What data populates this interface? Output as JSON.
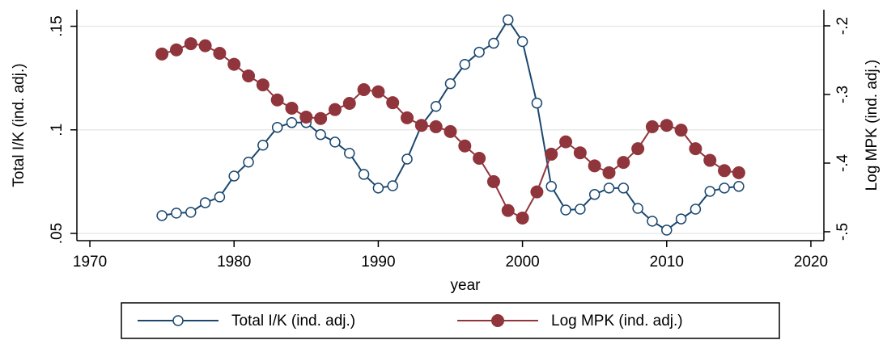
{
  "chart_data": {
    "type": "line",
    "x": [
      1975,
      1976,
      1977,
      1978,
      1979,
      1980,
      1981,
      1982,
      1983,
      1984,
      1985,
      1986,
      1987,
      1988,
      1989,
      1990,
      1991,
      1992,
      1993,
      1994,
      1995,
      1996,
      1997,
      1998,
      1999,
      2000,
      2001,
      2002,
      2003,
      2004,
      2005,
      2006,
      2007,
      2008,
      2009,
      2010,
      2011,
      2012,
      2013,
      2014,
      2015
    ],
    "xlabel": "year",
    "ylabel": "Total I/K (ind. adj.)",
    "y2label": "Log MPK (ind. adj.)",
    "xlim": [
      1969.1,
      2020.9
    ],
    "xticks": [
      1970,
      1980,
      1990,
      2000,
      2010,
      2020
    ],
    "ylim": [
      0.0465,
      0.158
    ],
    "yticks": [
      {
        "value": 0.05,
        "label": ".05"
      },
      {
        "value": 0.1,
        "label": ".1"
      },
      {
        "value": 0.15,
        "label": ".15"
      }
    ],
    "y2lim": [
      -0.513,
      -0.1765
    ],
    "y2ticks": [
      {
        "value": -0.5,
        "label": "-.5"
      },
      {
        "value": -0.4,
        "label": "-.4"
      },
      {
        "value": -0.3,
        "label": "-.3"
      },
      {
        "value": -0.2,
        "label": "-.2"
      }
    ],
    "grid": true,
    "legend": "bottom",
    "series": [
      {
        "name": "Total I/K (ind. adj.)",
        "color": "#1a476f",
        "marker": "hollow",
        "values": [
          0.0586,
          0.0598,
          0.0602,
          0.0648,
          0.0676,
          0.0777,
          0.0844,
          0.0926,
          0.1012,
          0.1035,
          0.1035,
          0.0977,
          0.0941,
          0.0887,
          0.0785,
          0.0719,
          0.073,
          0.0859,
          0.1023,
          0.1113,
          0.1223,
          0.1316,
          0.1375,
          0.1418,
          0.1531,
          0.1426,
          0.1129,
          0.0727,
          0.0613,
          0.0617,
          0.0688,
          0.0719,
          0.0719,
          0.0621,
          0.0559,
          0.0516,
          0.057,
          0.0617,
          0.0703,
          0.0719,
          0.0727
        ]
      },
      {
        "name": "Log MPK (ind. adj.)",
        "color": "#90353b",
        "marker": "filled",
        "axis": "y2",
        "values": [
          -0.241,
          -0.235,
          -0.226,
          -0.229,
          -0.24,
          -0.256,
          -0.273,
          -0.286,
          -0.308,
          -0.32,
          -0.333,
          -0.335,
          -0.322,
          -0.313,
          -0.293,
          -0.296,
          -0.312,
          -0.334,
          -0.345,
          -0.347,
          -0.354,
          -0.375,
          -0.393,
          -0.427,
          -0.469,
          -0.48,
          -0.442,
          -0.387,
          -0.369,
          -0.385,
          -0.404,
          -0.414,
          -0.399,
          -0.379,
          -0.347,
          -0.345,
          -0.352,
          -0.379,
          -0.396,
          -0.411,
          -0.414
        ]
      }
    ]
  }
}
